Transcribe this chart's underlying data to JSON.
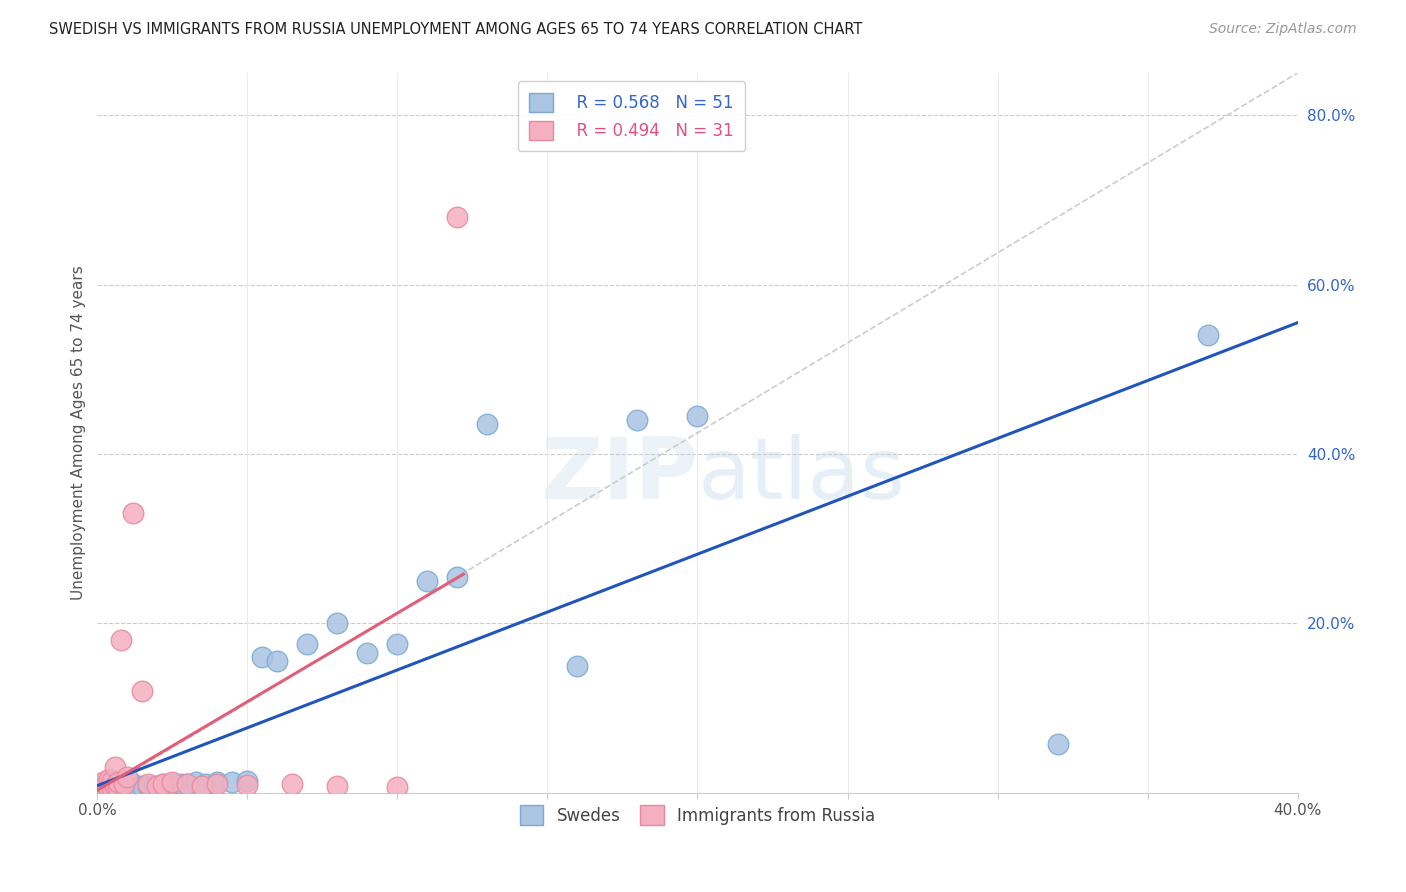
{
  "title": "SWEDISH VS IMMIGRANTS FROM RUSSIA UNEMPLOYMENT AMONG AGES 65 TO 74 YEARS CORRELATION CHART",
  "source": "Source: ZipAtlas.com",
  "ylabel": "Unemployment Among Ages 65 to 74 years",
  "xlim": [
    0.0,
    0.4
  ],
  "ylim": [
    0.0,
    0.85
  ],
  "xtick_positions": [
    0.0,
    0.05,
    0.1,
    0.15,
    0.2,
    0.25,
    0.3,
    0.35,
    0.4
  ],
  "xticklabels": [
    "0.0%",
    "",
    "",
    "",
    "",
    "",
    "",
    "",
    "40.0%"
  ],
  "yticks_right": [
    0.0,
    0.2,
    0.4,
    0.6,
    0.8
  ],
  "yticklabels_right": [
    "",
    "20.0%",
    "40.0%",
    "60.0%",
    "80.0%"
  ],
  "legend_R_blue": "0.568",
  "legend_N_blue": "51",
  "legend_R_pink": "0.494",
  "legend_N_pink": "31",
  "watermark": "ZIPatlas",
  "blue_color": "#aac4e2",
  "pink_color": "#f4afc0",
  "blue_edge_color": "#7aaad4",
  "pink_edge_color": "#e888a0",
  "blue_line_color": "#2255bb",
  "pink_line_color": "#e0607a",
  "diag_line_color": "#cccccc",
  "swedes_x": [
    0.001,
    0.001,
    0.001,
    0.002,
    0.002,
    0.002,
    0.003,
    0.003,
    0.003,
    0.004,
    0.004,
    0.005,
    0.005,
    0.005,
    0.006,
    0.006,
    0.007,
    0.007,
    0.008,
    0.008,
    0.009,
    0.01,
    0.011,
    0.012,
    0.013,
    0.015,
    0.017,
    0.019,
    0.022,
    0.025,
    0.028,
    0.03,
    0.033,
    0.036,
    0.04,
    0.045,
    0.05,
    0.055,
    0.06,
    0.07,
    0.08,
    0.09,
    0.1,
    0.11,
    0.12,
    0.13,
    0.16,
    0.18,
    0.2,
    0.32,
    0.37
  ],
  "swedes_y": [
    0.005,
    0.006,
    0.008,
    0.005,
    0.007,
    0.01,
    0.005,
    0.007,
    0.009,
    0.005,
    0.008,
    0.005,
    0.007,
    0.01,
    0.005,
    0.008,
    0.005,
    0.008,
    0.005,
    0.007,
    0.006,
    0.008,
    0.006,
    0.01,
    0.006,
    0.008,
    0.008,
    0.008,
    0.01,
    0.01,
    0.01,
    0.01,
    0.012,
    0.01,
    0.012,
    0.012,
    0.014,
    0.16,
    0.155,
    0.175,
    0.2,
    0.165,
    0.175,
    0.25,
    0.255,
    0.435,
    0.15,
    0.44,
    0.445,
    0.058,
    0.54
  ],
  "russia_x": [
    0.001,
    0.001,
    0.002,
    0.002,
    0.003,
    0.003,
    0.004,
    0.004,
    0.005,
    0.005,
    0.006,
    0.006,
    0.007,
    0.007,
    0.008,
    0.009,
    0.01,
    0.012,
    0.015,
    0.017,
    0.02,
    0.022,
    0.025,
    0.03,
    0.035,
    0.04,
    0.05,
    0.065,
    0.08,
    0.1,
    0.12
  ],
  "russia_y": [
    0.005,
    0.008,
    0.006,
    0.012,
    0.005,
    0.01,
    0.006,
    0.016,
    0.005,
    0.014,
    0.008,
    0.03,
    0.005,
    0.012,
    0.18,
    0.01,
    0.018,
    0.33,
    0.12,
    0.01,
    0.008,
    0.01,
    0.012,
    0.01,
    0.008,
    0.01,
    0.009,
    0.01,
    0.008,
    0.007,
    0.68
  ],
  "blue_line_x": [
    0.0,
    0.4
  ],
  "blue_line_slope": 0.84,
  "blue_line_intercept": 0.005,
  "pink_line_x_start": 0.003,
  "pink_line_x_end": 0.12,
  "pink_line_slope": 3.2,
  "pink_line_intercept": -0.005
}
